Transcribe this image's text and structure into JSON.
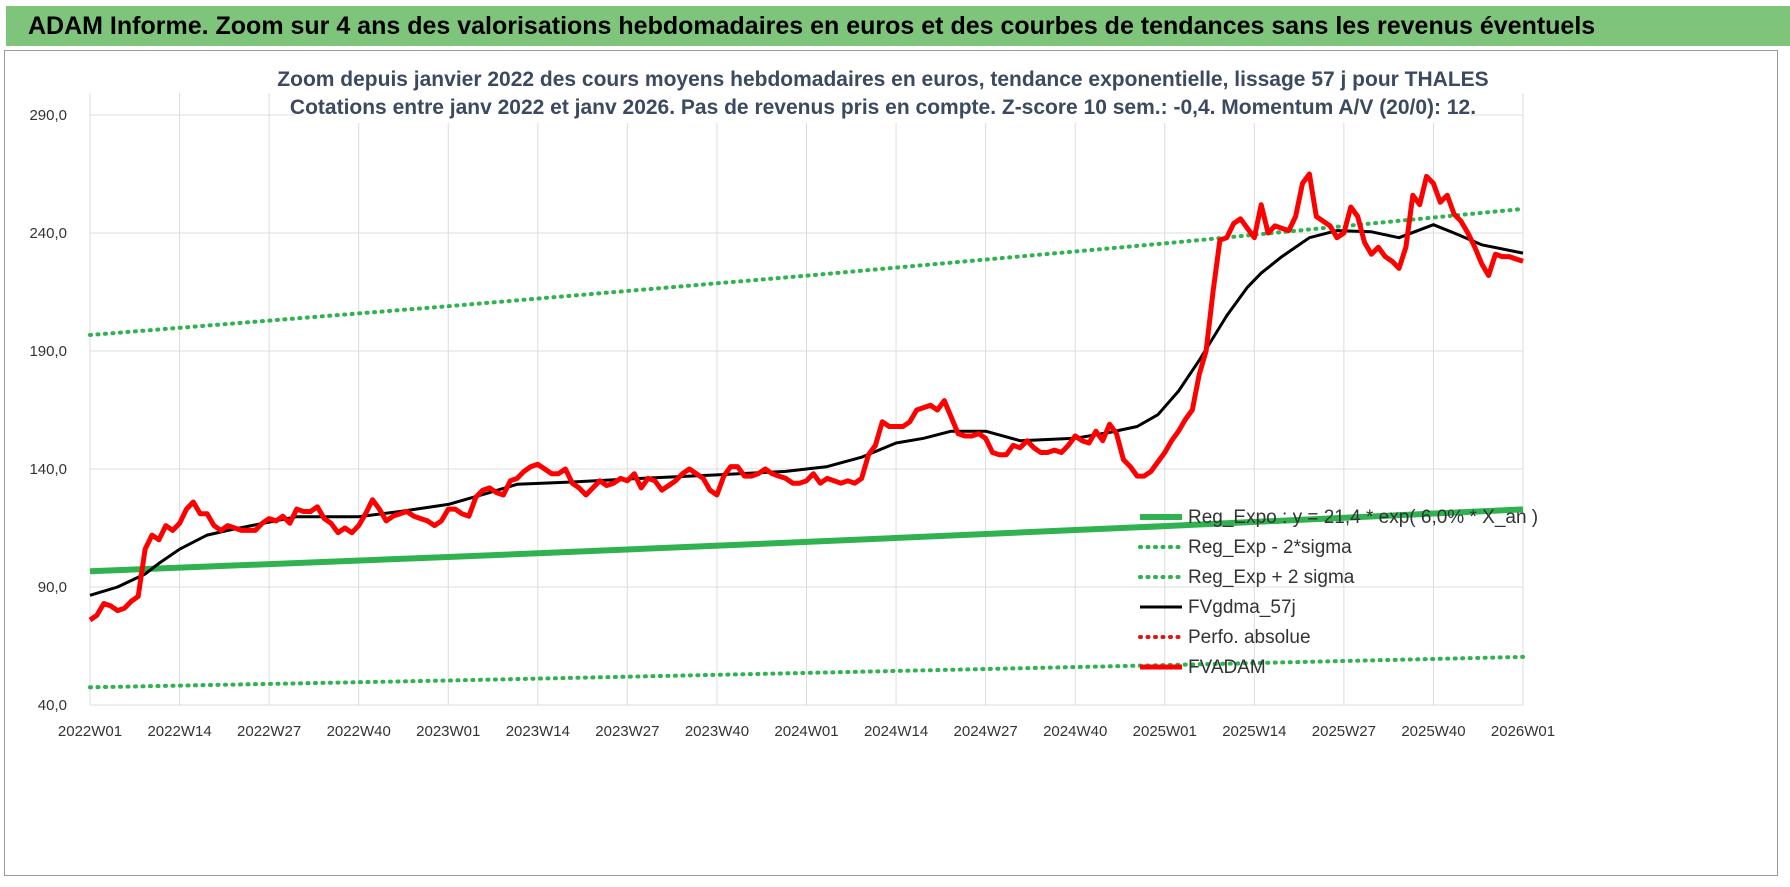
{
  "header": {
    "title": "ADAM Informe. Zoom sur 4 ans des valorisations hebdomadaires en euros et des courbes de tendances sans les revenus éventuels"
  },
  "chart_data": {
    "type": "line",
    "title": "Zoom depuis janvier 2022 des cours moyens hebdomadaires en euros, tendance exponentielle, lissage 57 j pour THALES",
    "subtitle": "Cotations entre janv 2022 et janv 2026. Pas de revenus pris en compte. Z-score 10 sem.: -0,4. Momentum A/V (20/0): 12.",
    "xlabel": "",
    "ylabel": "",
    "ylim": [
      40,
      290
    ],
    "yticks": [
      40,
      90,
      140,
      190,
      240,
      290
    ],
    "ytick_labels": [
      "40,0",
      "90,0",
      "140,0",
      "190,0",
      "240,0",
      "290,0"
    ],
    "xlim": [
      0,
      208
    ],
    "xticks": [
      0,
      13,
      26,
      39,
      52,
      65,
      78,
      91,
      104,
      117,
      130,
      143,
      156,
      169,
      182,
      195,
      208
    ],
    "xtick_labels": [
      "2022W01",
      "2022W14",
      "2022W27",
      "2022W40",
      "2023W01",
      "2023W14",
      "2023W27",
      "2023W40",
      "2024W01",
      "2024W14",
      "2024W27",
      "2024W40",
      "2025W01",
      "2025W14",
      "2025W27",
      "2025W40",
      "2026W01"
    ],
    "grid": true,
    "legend_position": "bottom-right",
    "series": [
      {
        "name": "Reg_Expo : y = 21,4 * exp( 6,0% * X_an )",
        "color": "#2fb24f",
        "style": "thick-solid",
        "x": [
          0,
          52,
          104,
          156,
          208
        ],
        "values": [
          96.7,
          102.7,
          109.1,
          115.8,
          122.9
        ]
      },
      {
        "name": "Reg_Exp - 2*sigma",
        "color": "#2fb24f",
        "style": "dotted",
        "x": [
          0,
          52,
          104,
          156,
          208
        ],
        "values": [
          47.5,
          50.4,
          53.6,
          56.9,
          60.4
        ]
      },
      {
        "name": "Reg_Exp + 2 sigma",
        "color": "#2fb24f",
        "style": "dotted",
        "x": [
          0,
          52,
          104,
          156,
          208
        ],
        "values": [
          196.8,
          209.0,
          221.9,
          235.6,
          250.2
        ]
      },
      {
        "name": "FVgdma_57j",
        "color": "#000000",
        "style": "solid",
        "x": [
          0,
          4,
          8,
          10,
          13,
          17,
          20,
          26,
          30,
          39,
          45,
          52,
          58,
          62,
          70,
          80,
          91,
          101,
          107,
          112,
          117,
          121,
          125,
          130,
          135,
          143,
          148,
          152,
          155,
          158,
          161,
          165,
          168,
          170,
          173,
          177,
          181,
          186,
          190,
          195,
          198,
          202,
          208
        ],
        "values": [
          86.5,
          90,
          95.5,
          100,
          106,
          112,
          114,
          117.5,
          119.8,
          119.8,
          122,
          125,
          130,
          133.5,
          134.5,
          136,
          137.5,
          139,
          141,
          145,
          151,
          153,
          156,
          156,
          152,
          153,
          155.5,
          158,
          163,
          173,
          186,
          205,
          217,
          223,
          230,
          238,
          241,
          240.5,
          238,
          243.5,
          240,
          235,
          231.5
        ]
      },
      {
        "name": "Perfo. absolue",
        "color": "#e01515",
        "style": "dotted",
        "x": [],
        "values": []
      },
      {
        "name": "FVADAM",
        "color": "#ff0000",
        "style": "thick-solid",
        "x": [
          0,
          1,
          2,
          3,
          4,
          5,
          6,
          7,
          8,
          9,
          10,
          11,
          12,
          13,
          14,
          15,
          16,
          17,
          18,
          19,
          20,
          21,
          22,
          23,
          24,
          25,
          26,
          27,
          28,
          29,
          30,
          31,
          32,
          33,
          34,
          35,
          36,
          37,
          38,
          39,
          40,
          41,
          42,
          43,
          44,
          45,
          46,
          47,
          48,
          49,
          50,
          51,
          52,
          53,
          54,
          55,
          56,
          57,
          58,
          59,
          60,
          61,
          62,
          63,
          64,
          65,
          66,
          67,
          68,
          69,
          70,
          71,
          72,
          73,
          74,
          75,
          76,
          77,
          78,
          79,
          80,
          81,
          82,
          83,
          84,
          85,
          86,
          87,
          88,
          89,
          90,
          91,
          92,
          93,
          94,
          95,
          96,
          97,
          98,
          99,
          100,
          101,
          102,
          103,
          104,
          105,
          106,
          107,
          108,
          109,
          110,
          111,
          112,
          113,
          114,
          115,
          116,
          117,
          118,
          119,
          120,
          121,
          122,
          123,
          124,
          125,
          126,
          127,
          128,
          129,
          130,
          131,
          132,
          133,
          134,
          135,
          136,
          137,
          138,
          139,
          140,
          141,
          142,
          143,
          144,
          145,
          146,
          147,
          148,
          149,
          150,
          151,
          152,
          153,
          154,
          155,
          156,
          157,
          158,
          159,
          160,
          161,
          162,
          163,
          164,
          165,
          166,
          167,
          168,
          169,
          170,
          171,
          172,
          173,
          174,
          175,
          176,
          177,
          178,
          179,
          180,
          181,
          182,
          183,
          184,
          185,
          186,
          187,
          188,
          189,
          190,
          191,
          192,
          193,
          194,
          195,
          196,
          197,
          198,
          199,
          200,
          201,
          202,
          203,
          204,
          205,
          206,
          207,
          208
        ],
        "values": [
          76,
          78,
          83,
          82,
          80,
          81,
          84,
          86,
          106,
          112,
          110,
          116,
          114,
          117,
          123,
          126,
          121,
          121,
          116,
          114,
          116,
          115,
          114,
          114,
          114,
          117,
          119,
          118,
          120,
          117,
          123,
          122,
          122,
          124,
          119,
          117,
          113,
          115,
          113,
          116,
          121,
          127,
          123,
          118,
          120,
          121,
          122,
          120,
          119,
          118,
          116,
          118,
          123,
          123,
          121,
          120,
          128,
          131,
          132,
          130,
          129,
          135,
          136,
          139,
          141,
          142,
          140,
          138,
          138,
          140,
          134,
          132,
          129,
          132,
          135,
          133,
          134,
          136,
          135,
          138,
          132,
          136,
          135,
          131,
          133,
          135,
          138,
          140,
          138,
          136,
          131,
          129,
          137,
          141,
          141,
          137,
          137,
          138,
          140,
          138,
          137,
          136,
          134,
          134,
          135,
          138,
          134,
          136,
          135,
          134,
          135,
          134,
          136,
          146,
          150,
          160,
          158,
          158,
          158,
          160,
          165,
          166,
          167,
          165,
          169,
          162,
          155,
          154,
          154,
          155,
          153,
          147,
          146,
          146,
          150,
          149,
          152,
          149,
          147,
          147,
          148,
          147,
          150,
          154,
          152,
          151,
          156,
          152,
          159,
          155,
          144,
          141,
          137,
          137,
          139,
          143,
          147,
          152,
          156,
          161,
          165,
          180,
          190,
          215,
          237,
          238,
          244,
          246,
          242,
          238,
          252,
          240,
          243,
          242,
          241,
          247,
          261,
          265,
          247,
          245,
          243,
          238,
          240,
          251,
          247,
          236,
          231,
          234,
          230,
          228,
          225,
          234,
          256,
          252,
          264,
          261,
          253,
          256,
          248,
          245,
          240,
          234,
          227,
          222,
          231,
          230,
          230,
          229,
          228
        ]
      }
    ]
  }
}
